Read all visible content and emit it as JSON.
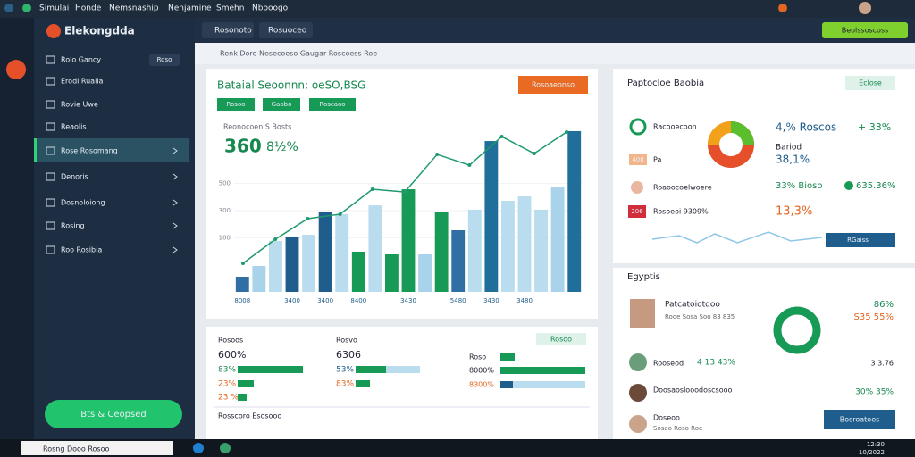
{
  "top_menu": [
    "Simulai",
    "Honde",
    "Nemsnaship",
    "Nenjamine",
    "Smehn",
    "Nbooogo"
  ],
  "sidebar": {
    "brand": "Elekongdda",
    "items": [
      "Rolo Gancy",
      "Erodi Rualla",
      "Rovie Uwe",
      "Reaolis",
      "Rose Rosomang",
      "Denoris",
      "Dosnoloiong",
      "Rosing",
      "Roo Rosibia"
    ],
    "badge": "Roso",
    "button": "Bts & Ceopsed"
  },
  "toolbar": {
    "tabs": [
      "Rosonoto",
      "Rosuoceo"
    ],
    "action": "Beolssoscoss"
  },
  "search": "Renk Dore Nesecoeso Gaugar Roscoess Roe",
  "main_panel": {
    "title": "Bataial Seoonnn: oeSO,BSG",
    "button": "Rosoaeonso",
    "tabs": [
      "Rosoo",
      "Gaobo",
      "Roscaoo"
    ],
    "subtitle": "Reonocoen S Bosts",
    "kpi": "360",
    "kpi_change": "8½%",
    "chart": {
      "type": "bar",
      "categories": [
        "8008",
        null,
        null,
        "3400",
        null,
        "3400",
        null,
        "8400",
        null,
        null,
        "3430",
        null,
        null,
        "5480",
        null,
        "3430",
        null,
        "3480",
        null,
        null,
        null
      ],
      "values": [
        -188,
        -109,
        76,
        109,
        122,
        287,
        274,
        -3,
        339,
        -23,
        458,
        -23,
        287,
        155,
        307,
        814,
        372,
        405,
        307,
        471,
        887
      ],
      "colors": [
        "#2f6fa3",
        "#a9d3ea",
        "#b9dcee",
        "#1f5d8c",
        "#b9dcee",
        "#1f5d8c",
        "#b9dcee",
        "#179a55",
        "#b9dcee",
        "#179a55",
        "#179a55",
        "#a9d3ea",
        "#179a55",
        "#2f6fa3",
        "#b9dcee",
        "#1f6f9a",
        "#b9dcee",
        "#b9dcee",
        "#b9dcee",
        "#a9d3ea",
        "#1f6f9a"
      ],
      "ylim": [
        -300,
        900
      ],
      "yticks": [
        100,
        300,
        500
      ],
      "line": {
        "color": "#1d9a6c",
        "values": [
          -89,
          89,
          241,
          274,
          458,
          438,
          715,
          636,
          847,
          722,
          880
        ]
      }
    }
  },
  "right_panel": {
    "title": "Paptocloe Baobia",
    "action": "Eclose",
    "rows": [
      "Racooecoon",
      "Pa",
      "Roaoocoelwoere",
      "Rosoeoi 9309%"
    ],
    "badges": [
      "408",
      "206"
    ],
    "stats": [
      "4,% Roscos",
      "+ 33%",
      "Bariod",
      "38,1%",
      "33% Bioso",
      "635.36%",
      "13,3%"
    ],
    "button": "RGaiss"
  },
  "contacts_panel": {
    "title": "Egyptis",
    "people": [
      "Patcatoiotdoo",
      "Rooseod",
      "Doosaoslooodoscsooo",
      "Doseoo"
    ],
    "details": [
      "Rooe Sosa Soo 83 835",
      "Sosao Roso Roe"
    ],
    "stats": [
      "86%",
      "S35 55%",
      "4 13 43%",
      "3 3.76",
      "30% 35%"
    ],
    "button": "Bosroatoes"
  },
  "bottom_panel": {
    "columns": [
      "Rosoos",
      "Rosvo"
    ],
    "values": [
      "600%",
      "83%",
      "23%",
      "23 %",
      "6306",
      "53%",
      "83%",
      "Roso",
      "8000%",
      "8300%"
    ],
    "dropdown": "Rosoo",
    "footer": "Rosscoro Esosooo"
  },
  "taskbar": {
    "search": "Rosng Dooo Rosoo",
    "time": "12:30",
    "date": "10/2022"
  }
}
